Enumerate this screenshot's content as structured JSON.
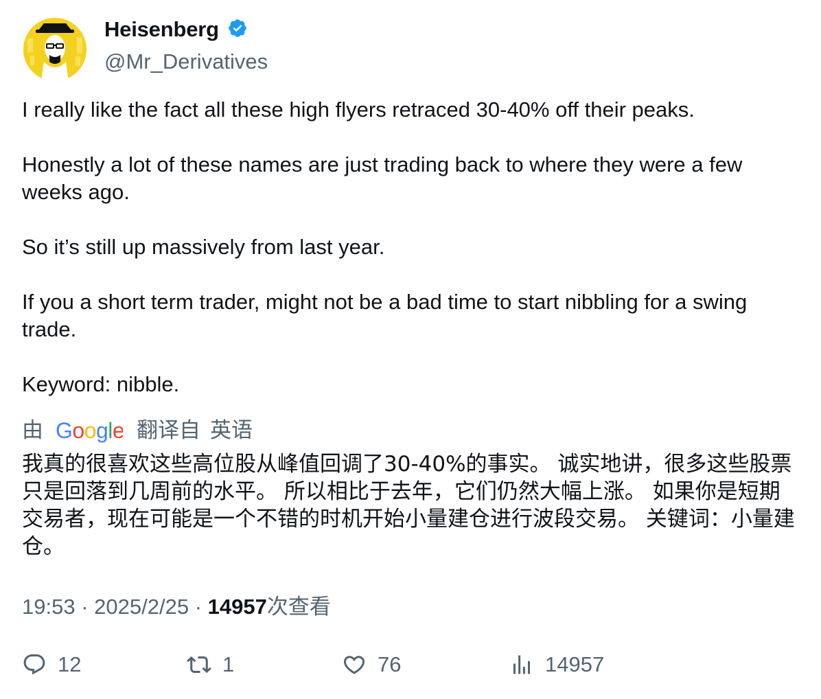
{
  "author": {
    "display_name": "Heisenberg",
    "handle": "@Mr_Derivatives",
    "verified": true,
    "avatar_icon": "heisenberg-avatar",
    "avatar_color": "#f5d11f"
  },
  "tweet": {
    "paragraphs": [
      "I really like the fact all these high flyers retraced 30-40% off their peaks.",
      "Honestly a lot of these names are just trading back to where they were a few weeks ago.",
      "So it’s still up massively from last year.",
      "If you a short term trader, might not be a bad time to start nibbling for a swing trade.",
      "Keyword: nibble."
    ]
  },
  "translation": {
    "by_label": "由",
    "provider": "Google",
    "from_label": "翻译自",
    "source_language": "英语",
    "text": "我真的很喜欢这些高位股从峰值回调了30-40%的事实。 诚实地讲，很多这些股票只是回落到几周前的水平。 所以相比于去年，它们仍然大幅上涨。 如果你是短期交易者，现在可能是一个不错的时机开始小量建仓进行波段交易。 关键词：小量建仓。"
  },
  "meta": {
    "time": "19:53",
    "separator": "·",
    "date": "2025/2/25",
    "views_count": "14957",
    "views_label": "次查看"
  },
  "actions": {
    "replies": "12",
    "retweets": "1",
    "likes": "76",
    "views": "14957"
  },
  "colors": {
    "text": "#0f1419",
    "secondary": "#536471",
    "verified_blue": "#1d9bf0"
  }
}
